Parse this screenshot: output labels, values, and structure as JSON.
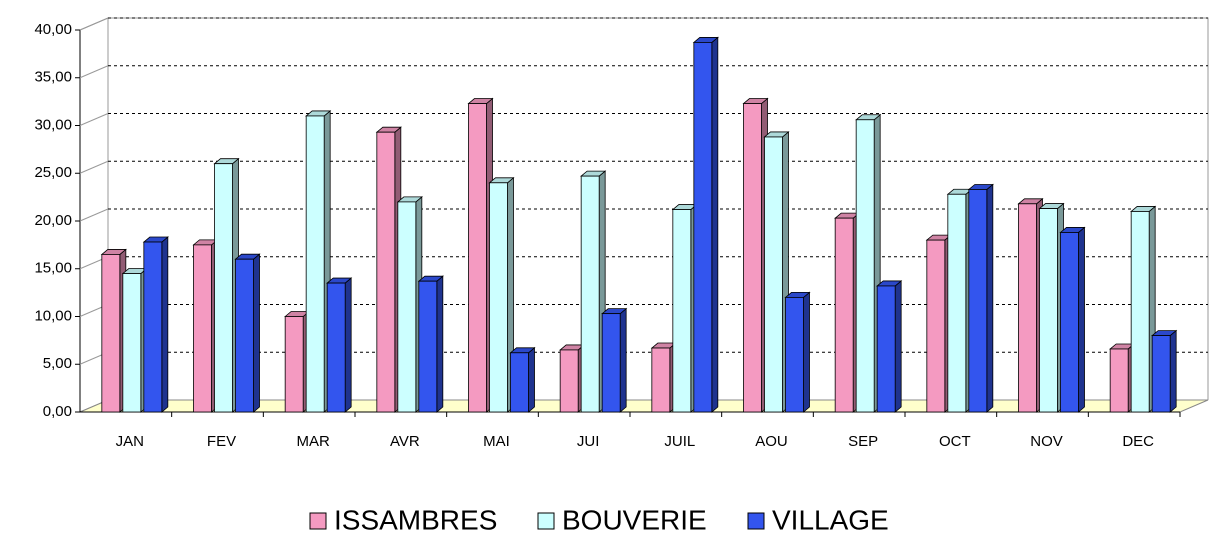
{
  "chart_data": {
    "type": "bar3d",
    "categories": [
      "JAN",
      "FEV",
      "MAR",
      "AVR",
      "MAI",
      "JUI",
      "JUIL",
      "AOU",
      "SEP",
      "OCT",
      "NOV",
      "DEC"
    ],
    "series": [
      {
        "name": "ISSAMBRES",
        "color": "#f49ac1",
        "values": [
          16.5,
          17.5,
          10,
          29.3,
          32.3,
          6.5,
          6.7,
          32.3,
          20.3,
          18,
          21.8,
          6.6
        ]
      },
      {
        "name": "BOUVERIE",
        "color": "#ccffff",
        "values": [
          14.5,
          26,
          31,
          22,
          24,
          24.7,
          21.2,
          28.8,
          30.6,
          22.8,
          21.3,
          21
        ]
      },
      {
        "name": "VILLAGE",
        "color": "#3355ee",
        "values": [
          17.8,
          16,
          13.5,
          13.7,
          6.2,
          10.3,
          38.7,
          12,
          13.2,
          23.3,
          18.8,
          8
        ]
      }
    ],
    "ylim": [
      0,
      40
    ],
    "yticks": [
      {
        "value": 0,
        "label": "0,00"
      },
      {
        "value": 5,
        "label": "5,00"
      },
      {
        "value": 10,
        "label": "10,00"
      },
      {
        "value": 15,
        "label": "15,00"
      },
      {
        "value": 20,
        "label": "20,00"
      },
      {
        "value": 25,
        "label": "25,00"
      },
      {
        "value": 30,
        "label": "30,00"
      },
      {
        "value": 35,
        "label": "35,00"
      },
      {
        "value": 40,
        "label": "40,00"
      }
    ],
    "grid": true,
    "legend": "bottom"
  }
}
